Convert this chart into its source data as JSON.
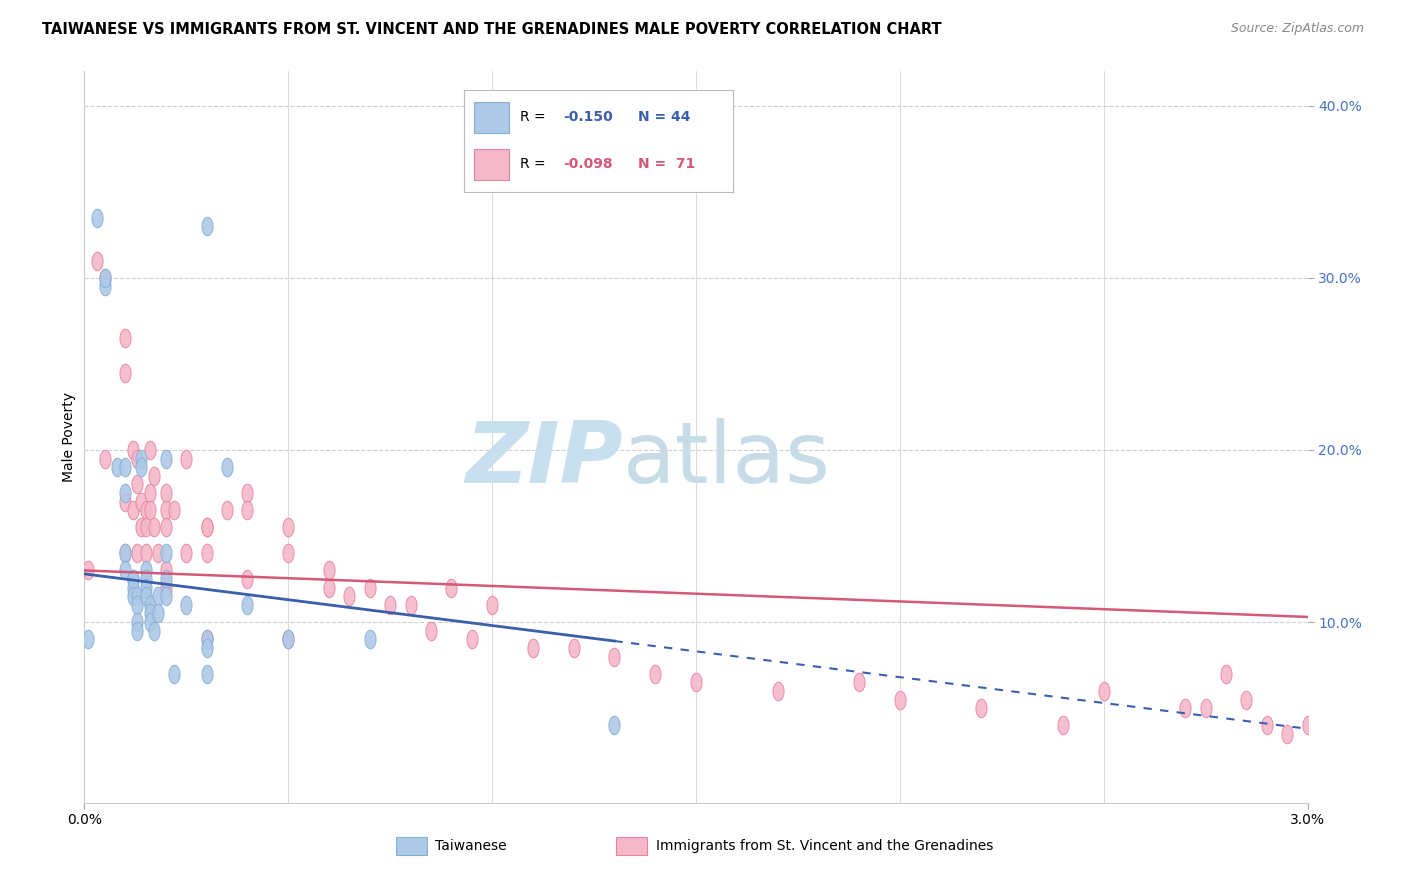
{
  "title": "TAIWANESE VS IMMIGRANTS FROM ST. VINCENT AND THE GRENADINES MALE POVERTY CORRELATION CHART",
  "source": "Source: ZipAtlas.com",
  "ylabel": "Male Poverty",
  "xlim": [
    0.0,
    0.03
  ],
  "ylim": [
    -0.005,
    0.42
  ],
  "taiwanese_color": "#aec9e8",
  "taiwanese_edge": "#85afd4",
  "svg_color": "#f5b8cb",
  "svg_edge": "#e8849e",
  "line_color_taiwanese": "#3a5fad",
  "line_color_svg": "#d45878",
  "watermark_zip_color": "#c8dff0",
  "watermark_atlas_color": "#c8dce8",
  "background_color": "#ffffff",
  "grid_color": "#d0d0d0",
  "tick_color": "#4472c4",
  "title_fontsize": 10.5,
  "tw_intercept": 0.128,
  "tw_slope": -3.0,
  "svg_intercept": 0.13,
  "svg_slope": -0.9,
  "taiwanese_x": [
    0.0001,
    0.0003,
    0.0005,
    0.0005,
    0.0008,
    0.001,
    0.001,
    0.001,
    0.001,
    0.0012,
    0.0012,
    0.0012,
    0.0012,
    0.0013,
    0.0013,
    0.0013,
    0.0013,
    0.0014,
    0.0014,
    0.0015,
    0.0015,
    0.0015,
    0.0015,
    0.0016,
    0.0016,
    0.0016,
    0.0017,
    0.0018,
    0.0018,
    0.002,
    0.002,
    0.002,
    0.002,
    0.0022,
    0.0025,
    0.003,
    0.003,
    0.003,
    0.003,
    0.0035,
    0.004,
    0.005,
    0.007,
    0.013
  ],
  "taiwanese_y": [
    0.09,
    0.335,
    0.295,
    0.3,
    0.19,
    0.19,
    0.175,
    0.14,
    0.13,
    0.125,
    0.125,
    0.12,
    0.115,
    0.115,
    0.11,
    0.1,
    0.095,
    0.195,
    0.19,
    0.13,
    0.125,
    0.12,
    0.115,
    0.11,
    0.105,
    0.1,
    0.095,
    0.115,
    0.105,
    0.195,
    0.14,
    0.125,
    0.115,
    0.07,
    0.11,
    0.09,
    0.085,
    0.07,
    0.33,
    0.19,
    0.11,
    0.09,
    0.09,
    0.04
  ],
  "svg_x": [
    0.0001,
    0.0003,
    0.0005,
    0.0005,
    0.001,
    0.001,
    0.001,
    0.001,
    0.0012,
    0.0012,
    0.0013,
    0.0013,
    0.0013,
    0.0014,
    0.0014,
    0.0015,
    0.0015,
    0.0015,
    0.0016,
    0.0016,
    0.0016,
    0.0017,
    0.0017,
    0.0018,
    0.002,
    0.002,
    0.002,
    0.002,
    0.002,
    0.0022,
    0.0025,
    0.0025,
    0.003,
    0.003,
    0.003,
    0.003,
    0.0035,
    0.004,
    0.004,
    0.004,
    0.005,
    0.005,
    0.005,
    0.006,
    0.006,
    0.0065,
    0.007,
    0.0075,
    0.008,
    0.0085,
    0.009,
    0.0095,
    0.01,
    0.011,
    0.012,
    0.013,
    0.014,
    0.015,
    0.017,
    0.019,
    0.02,
    0.022,
    0.024,
    0.025,
    0.027,
    0.028,
    0.029,
    0.03,
    0.0295,
    0.0285,
    0.0275
  ],
  "svg_y": [
    0.13,
    0.31,
    0.3,
    0.195,
    0.265,
    0.245,
    0.17,
    0.14,
    0.2,
    0.165,
    0.195,
    0.18,
    0.14,
    0.17,
    0.155,
    0.165,
    0.155,
    0.14,
    0.2,
    0.175,
    0.165,
    0.185,
    0.155,
    0.14,
    0.175,
    0.165,
    0.155,
    0.13,
    0.12,
    0.165,
    0.195,
    0.14,
    0.155,
    0.155,
    0.14,
    0.09,
    0.165,
    0.175,
    0.165,
    0.125,
    0.155,
    0.14,
    0.09,
    0.13,
    0.12,
    0.115,
    0.12,
    0.11,
    0.11,
    0.095,
    0.12,
    0.09,
    0.11,
    0.085,
    0.085,
    0.08,
    0.07,
    0.065,
    0.06,
    0.065,
    0.055,
    0.05,
    0.04,
    0.06,
    0.05,
    0.07,
    0.04,
    0.04,
    0.035,
    0.055,
    0.05
  ]
}
